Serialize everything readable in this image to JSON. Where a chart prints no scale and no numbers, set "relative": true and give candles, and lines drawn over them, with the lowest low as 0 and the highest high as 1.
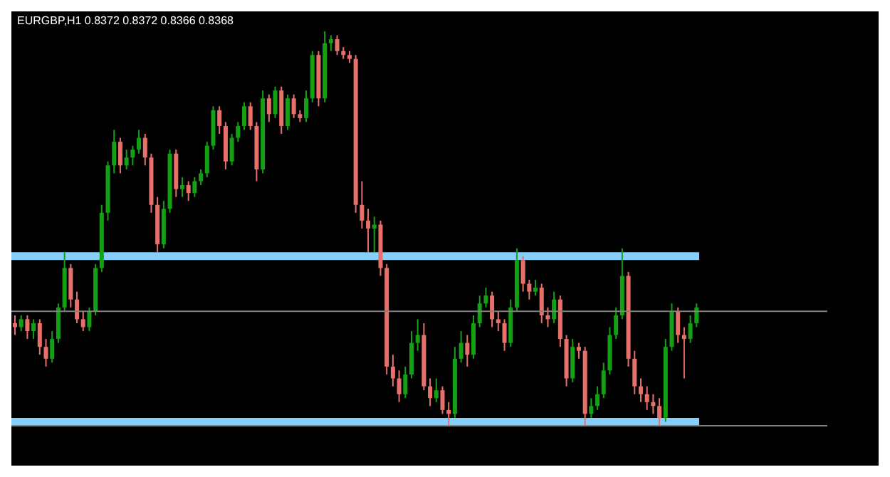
{
  "chart_data": {
    "type": "candlestick",
    "title": "EURGBP,H1 0.8372 0.8372 0.8366 0.8368",
    "relative": true,
    "categories": [
      null,
      null,
      null,
      null,
      null,
      null,
      null,
      null,
      null,
      null,
      null,
      null,
      null,
      null,
      null,
      null,
      null,
      null,
      null,
      null,
      null,
      null,
      null,
      null,
      null,
      null,
      null,
      null,
      null,
      null,
      null,
      null,
      null,
      null,
      null,
      null,
      null,
      null,
      null,
      null,
      null,
      null,
      null,
      null,
      null,
      null,
      null,
      null,
      null,
      null,
      null,
      null,
      null,
      null,
      null,
      null,
      null,
      null,
      null,
      null,
      null,
      null,
      null,
      null,
      null,
      null,
      null,
      null,
      null,
      null,
      null,
      null,
      null,
      null,
      null,
      null,
      null,
      null,
      null,
      null,
      null,
      null,
      null,
      null,
      null,
      null,
      null,
      null,
      null,
      null,
      null,
      null,
      null,
      null,
      null,
      null,
      null,
      null,
      null,
      null,
      null,
      null,
      null,
      null,
      null,
      null,
      null,
      null,
      null,
      null,
      null
    ],
    "ohlc": [
      [
        0.26,
        0.28,
        0.23,
        0.25
      ],
      [
        0.25,
        0.28,
        0.24,
        0.27
      ],
      [
        0.27,
        0.28,
        0.22,
        0.24
      ],
      [
        0.24,
        0.27,
        0.22,
        0.26
      ],
      [
        0.26,
        0.27,
        0.18,
        0.2
      ],
      [
        0.2,
        0.22,
        0.15,
        0.17
      ],
      [
        0.17,
        0.24,
        0.16,
        0.22
      ],
      [
        0.22,
        0.31,
        0.21,
        0.3
      ],
      [
        0.3,
        0.44,
        0.29,
        0.4
      ],
      [
        0.4,
        0.41,
        0.3,
        0.32
      ],
      [
        0.32,
        0.34,
        0.26,
        0.27
      ],
      [
        0.27,
        0.29,
        0.24,
        0.25
      ],
      [
        0.25,
        0.3,
        0.24,
        0.29
      ],
      [
        0.29,
        0.41,
        0.28,
        0.4
      ],
      [
        0.4,
        0.56,
        0.39,
        0.54
      ],
      [
        0.54,
        0.67,
        0.52,
        0.66
      ],
      [
        0.66,
        0.75,
        0.64,
        0.72
      ],
      [
        0.72,
        0.73,
        0.64,
        0.66
      ],
      [
        0.66,
        0.7,
        0.65,
        0.68
      ],
      [
        0.68,
        0.71,
        0.66,
        0.7
      ],
      [
        0.7,
        0.75,
        0.69,
        0.73
      ],
      [
        0.73,
        0.74,
        0.66,
        0.68
      ],
      [
        0.68,
        0.69,
        0.54,
        0.56
      ],
      [
        0.56,
        0.58,
        0.44,
        0.46
      ],
      [
        0.46,
        0.57,
        0.45,
        0.55
      ],
      [
        0.55,
        0.7,
        0.54,
        0.69
      ],
      [
        0.69,
        0.7,
        0.58,
        0.6
      ],
      [
        0.6,
        0.63,
        0.58,
        0.61
      ],
      [
        0.61,
        0.62,
        0.57,
        0.59
      ],
      [
        0.59,
        0.63,
        0.58,
        0.62
      ],
      [
        0.62,
        0.65,
        0.61,
        0.64
      ],
      [
        0.64,
        0.72,
        0.63,
        0.71
      ],
      [
        0.71,
        0.81,
        0.7,
        0.8
      ],
      [
        0.8,
        0.81,
        0.74,
        0.76
      ],
      [
        0.76,
        0.77,
        0.65,
        0.67
      ],
      [
        0.67,
        0.74,
        0.66,
        0.73
      ],
      [
        0.73,
        0.77,
        0.72,
        0.76
      ],
      [
        0.76,
        0.82,
        0.75,
        0.81
      ],
      [
        0.81,
        0.82,
        0.75,
        0.76
      ],
      [
        0.76,
        0.77,
        0.62,
        0.65
      ],
      [
        0.65,
        0.85,
        0.64,
        0.83
      ],
      [
        0.83,
        0.84,
        0.77,
        0.79
      ],
      [
        0.79,
        0.86,
        0.78,
        0.85
      ],
      [
        0.85,
        0.86,
        0.74,
        0.76
      ],
      [
        0.76,
        0.84,
        0.75,
        0.83
      ],
      [
        0.83,
        0.84,
        0.78,
        0.79
      ],
      [
        0.79,
        0.8,
        0.77,
        0.78
      ],
      [
        0.78,
        0.85,
        0.77,
        0.83
      ],
      [
        0.83,
        0.95,
        0.82,
        0.94
      ],
      [
        0.94,
        0.95,
        0.81,
        0.83
      ],
      [
        0.83,
        1.0,
        0.82,
        0.97
      ],
      [
        0.97,
        0.99,
        0.95,
        0.98
      ],
      [
        0.98,
        0.99,
        0.94,
        0.95
      ],
      [
        0.95,
        0.96,
        0.93,
        0.94
      ],
      [
        0.94,
        0.95,
        0.92,
        0.93
      ],
      [
        0.93,
        0.94,
        0.54,
        0.56
      ],
      [
        0.56,
        0.62,
        0.5,
        0.52
      ],
      [
        0.52,
        0.55,
        0.44,
        0.5
      ],
      [
        0.5,
        0.53,
        0.44,
        0.51
      ],
      [
        0.51,
        0.52,
        0.38,
        0.4
      ],
      [
        0.4,
        0.41,
        0.13,
        0.15
      ],
      [
        0.15,
        0.18,
        0.1,
        0.12
      ],
      [
        0.12,
        0.14,
        0.06,
        0.08
      ],
      [
        0.08,
        0.15,
        0.07,
        0.13
      ],
      [
        0.13,
        0.24,
        0.12,
        0.21
      ],
      [
        0.21,
        0.27,
        0.19,
        0.23
      ],
      [
        0.23,
        0.26,
        0.09,
        0.1
      ],
      [
        0.1,
        0.12,
        0.05,
        0.07
      ],
      [
        0.07,
        0.12,
        0.06,
        0.09
      ],
      [
        0.09,
        0.1,
        0.03,
        0.04
      ],
      [
        0.04,
        0.06,
        0.0,
        0.03
      ],
      [
        0.03,
        0.2,
        0.02,
        0.17
      ],
      [
        0.17,
        0.24,
        0.16,
        0.21
      ],
      [
        0.21,
        0.23,
        0.15,
        0.18
      ],
      [
        0.18,
        0.28,
        0.17,
        0.26
      ],
      [
        0.26,
        0.33,
        0.25,
        0.31
      ],
      [
        0.31,
        0.35,
        0.3,
        0.33
      ],
      [
        0.33,
        0.34,
        0.25,
        0.27
      ],
      [
        0.27,
        0.29,
        0.24,
        0.26
      ],
      [
        0.26,
        0.27,
        0.19,
        0.21
      ],
      [
        0.21,
        0.32,
        0.2,
        0.3
      ],
      [
        0.3,
        0.45,
        0.29,
        0.42
      ],
      [
        0.42,
        0.43,
        0.34,
        0.36
      ],
      [
        0.36,
        0.37,
        0.32,
        0.34
      ],
      [
        0.34,
        0.37,
        0.33,
        0.35
      ],
      [
        0.35,
        0.36,
        0.26,
        0.28
      ],
      [
        0.28,
        0.3,
        0.25,
        0.27
      ],
      [
        0.27,
        0.34,
        0.26,
        0.32
      ],
      [
        0.32,
        0.33,
        0.2,
        0.22
      ],
      [
        0.22,
        0.23,
        0.1,
        0.12
      ],
      [
        0.12,
        0.22,
        0.11,
        0.2
      ],
      [
        0.2,
        0.21,
        0.17,
        0.19
      ],
      [
        0.19,
        0.2,
        0.0,
        0.03
      ],
      [
        0.03,
        0.07,
        0.02,
        0.05
      ],
      [
        0.05,
        0.1,
        0.04,
        0.08
      ],
      [
        0.08,
        0.16,
        0.07,
        0.14
      ],
      [
        0.14,
        0.25,
        0.13,
        0.23
      ],
      [
        0.23,
        0.3,
        0.22,
        0.28
      ],
      [
        0.28,
        0.45,
        0.27,
        0.38
      ],
      [
        0.38,
        0.39,
        0.15,
        0.17
      ],
      [
        0.17,
        0.19,
        0.08,
        0.1
      ],
      [
        0.1,
        0.12,
        0.06,
        0.08
      ],
      [
        0.08,
        0.1,
        0.04,
        0.06
      ],
      [
        0.06,
        0.08,
        0.03,
        0.05
      ],
      [
        0.05,
        0.07,
        0.0,
        0.02
      ],
      [
        0.02,
        0.22,
        0.01,
        0.2
      ],
      [
        0.2,
        0.31,
        0.19,
        0.29
      ],
      [
        0.29,
        0.3,
        0.21,
        0.23
      ],
      [
        0.23,
        0.25,
        0.12,
        0.22
      ],
      [
        0.22,
        0.28,
        0.21,
        0.26
      ],
      [
        0.26,
        0.31,
        0.25,
        0.3
      ]
    ],
    "ref_lines": [
      {
        "axis": "y",
        "value": 0.29,
        "color": "#808080"
      }
    ],
    "bands": [
      {
        "axis": "y",
        "from": 0.42,
        "to": 0.44,
        "color": "#87cefa"
      },
      {
        "axis": "y",
        "from": 0.0,
        "to": 0.02,
        "color": "#87cefa"
      }
    ]
  }
}
